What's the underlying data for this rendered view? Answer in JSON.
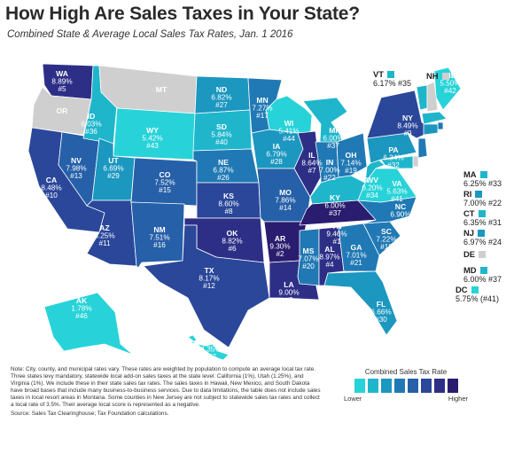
{
  "title": "How High Are Sales Taxes in Your State?",
  "subtitle": "Combined State & Average Local Sales Tax Rates, Jan. 1 2016",
  "colors": {
    "scale": [
      "#27d3d8",
      "#1fb6cc",
      "#1b97c0",
      "#2079b4",
      "#2660a8",
      "#2b479a",
      "#2d2f87",
      "#2a1c6f"
    ],
    "no_tax": "#cfcfcf",
    "background": "#ffffff"
  },
  "states": {
    "WA": {
      "abbr": "WA",
      "rate": "8.89%",
      "rank": "#5"
    },
    "OR": {
      "abbr": "OR"
    },
    "ID": {
      "abbr": "ID",
      "rate": "6.03%",
      "rank": "#36"
    },
    "MT": {
      "abbr": "MT"
    },
    "WY": {
      "abbr": "WY",
      "rate": "5.42%",
      "rank": "#43"
    },
    "ND": {
      "abbr": "ND",
      "rate": "6.82%",
      "rank": "#27"
    },
    "SD": {
      "abbr": "SD",
      "rate": "5.84%",
      "rank": "#40"
    },
    "NE": {
      "abbr": "NE",
      "rate": "6.87%",
      "rank": "#26"
    },
    "MN": {
      "abbr": "MN",
      "rate": "7.27%",
      "rank": "#17"
    },
    "IA": {
      "abbr": "IA",
      "rate": "6.79%",
      "rank": "#28"
    },
    "WI": {
      "abbr": "WI",
      "rate": "5.41%",
      "rank": "#44"
    },
    "MI": {
      "abbr": "MI",
      "rate": "6.00%",
      "rank": "#37"
    },
    "CA": {
      "abbr": "CA",
      "rate": "8.48%",
      "rank": "#10"
    },
    "NV": {
      "abbr": "NV",
      "rate": "7.98%",
      "rank": "#13"
    },
    "UT": {
      "abbr": "UT",
      "rate": "6.69%",
      "rank": "#29"
    },
    "CO": {
      "abbr": "CO",
      "rate": "7.52%",
      "rank": "#15"
    },
    "KS": {
      "abbr": "KS",
      "rate": "8.60%",
      "rank": "#8"
    },
    "MO": {
      "abbr": "MO",
      "rate": "7.86%",
      "rank": "#14"
    },
    "IL": {
      "abbr": "IL",
      "rate": "8.64%",
      "rank": "#7"
    },
    "IN": {
      "abbr": "IN",
      "rate": "7.00%",
      "rank": "#22"
    },
    "OH": {
      "abbr": "OH",
      "rate": "7.14%",
      "rank": "#19"
    },
    "AZ": {
      "abbr": "AZ",
      "rate": "8.25%",
      "rank": "#11"
    },
    "NM": {
      "abbr": "NM",
      "rate": "7.51%",
      "rank": "#16"
    },
    "OK": {
      "abbr": "OK",
      "rate": "8.82%",
      "rank": "#6"
    },
    "AR": {
      "abbr": "AR",
      "rate": "9.30%",
      "rank": "#2"
    },
    "TN": {
      "abbr": "TN",
      "rate": "9.46%",
      "rank": "#1"
    },
    "KY": {
      "abbr": "KY",
      "rate": "6.00%",
      "rank": "#37"
    },
    "WV": {
      "abbr": "WV",
      "rate": "6.20%",
      "rank": "#34"
    },
    "VA": {
      "abbr": "VA",
      "rate": "5.63%",
      "rank": "#41"
    },
    "PA": {
      "abbr": "PA",
      "rate": "6.34%",
      "rank": "#32"
    },
    "NY": {
      "abbr": "NY",
      "rate": "8.49%",
      "rank": "#9"
    },
    "NC": {
      "abbr": "NC",
      "rate": "6.90%",
      "rank": "#25"
    },
    "SC": {
      "abbr": "SC",
      "rate": "7.22%",
      "rank": "#18"
    },
    "GA": {
      "abbr": "GA",
      "rate": "7.01%",
      "rank": "#21"
    },
    "AL": {
      "abbr": "AL",
      "rate": "8.97%",
      "rank": "#4"
    },
    "MS": {
      "abbr": "MS",
      "rate": "7.07%",
      "rank": "#20"
    },
    "LA": {
      "abbr": "LA",
      "rate": "9.00%",
      "rank": "#3"
    },
    "TX": {
      "abbr": "TX",
      "rate": "8.17%",
      "rank": "#12"
    },
    "FL": {
      "abbr": "FL",
      "rate": "6.66%",
      "rank": "#30"
    },
    "ME": {
      "abbr": "ME",
      "rate": "5.50%",
      "rank": "#42"
    },
    "AK": {
      "abbr": "AK",
      "rate": "1.78%",
      "rank": "#46"
    },
    "HI": {
      "abbr": "HI",
      "rate": "4.35%",
      "rank": "#45"
    },
    "VT": {
      "abbr": "VT",
      "line": "6.17% #35"
    },
    "NH": {
      "abbr": "NH"
    },
    "MA": {
      "abbr": "MA",
      "line": "6.25% #33"
    },
    "RI": {
      "abbr": "RI",
      "line": "7.00% #22"
    },
    "CT": {
      "abbr": "CT",
      "line": "6.35% #31"
    },
    "NJ": {
      "abbr": "NJ",
      "line": "6.97% #24"
    },
    "DE": {
      "abbr": "DE"
    },
    "MD": {
      "abbr": "MD",
      "line": "6.00% #37"
    },
    "DC": {
      "abbr": "DC",
      "line": "5.75% (#41)"
    }
  },
  "note": {
    "text": "Note: City, county, and municipal rates vary. These rates are weighted by population to compute an average local tax rate. Three states levy mandatory, statewide local add-on sales taxes at the state level: California (1%), Utah (1.25%), and Virginia (1%). We include these in their state sales tax rates. The sales taxes in Hawaii, New Mexico, and South Dakota have broad bases that include many business-to-business services. Due to data limitations, the table does not include sales taxes in local resort areas in Montana. Some counties in New Jersey are not subject to statewide sales tax rates and collect a local rate of 3.5%. Their average local score is represented as a negative.",
    "source": "Source: Sales Tax Clearinghouse; Tax Foundation calculations."
  },
  "legend": {
    "title": "Combined Sales Tax Rate",
    "low_label": "Lower",
    "high_label": "Higher"
  }
}
